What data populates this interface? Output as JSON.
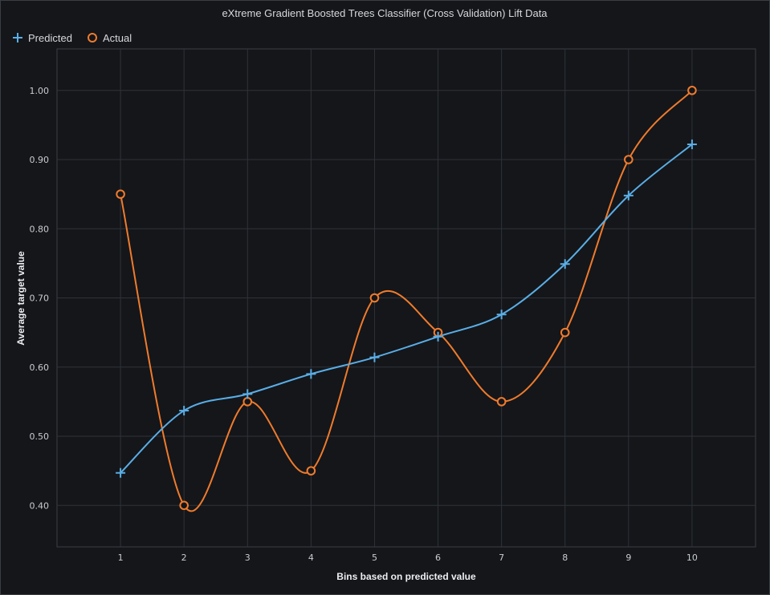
{
  "chart_data": {
    "type": "line",
    "title": "eXtreme Gradient Boosted Trees Classifier (Cross Validation) Lift Data",
    "xlabel": "Bins based on predicted value",
    "ylabel": "Average target value",
    "x": [
      1,
      2,
      3,
      4,
      5,
      6,
      7,
      8,
      9,
      10
    ],
    "x_tick_labels": [
      "1",
      "2",
      "3",
      "4",
      "5",
      "6",
      "7",
      "8",
      "9",
      "10"
    ],
    "xlim": [
      0,
      11
    ],
    "ylim": [
      0.34,
      1.06
    ],
    "y_ticks": [
      0.4,
      0.5,
      0.6,
      0.7,
      0.8,
      0.9,
      1.0
    ],
    "y_tick_labels": [
      "0.40",
      "0.50",
      "0.60",
      "0.70",
      "0.80",
      "0.90",
      "1.00"
    ],
    "grid": true,
    "legend_position": "top-left",
    "series": [
      {
        "name": "Predicted",
        "marker": "plus",
        "color": "#5aaee6",
        "values": [
          0.447,
          0.537,
          0.561,
          0.59,
          0.614,
          0.644,
          0.676,
          0.749,
          0.848,
          0.922
        ]
      },
      {
        "name": "Actual",
        "marker": "circle",
        "color": "#f07b2c",
        "values": [
          0.85,
          0.4,
          0.55,
          0.45,
          0.7,
          0.65,
          0.55,
          0.65,
          0.9,
          1.0
        ]
      }
    ]
  }
}
